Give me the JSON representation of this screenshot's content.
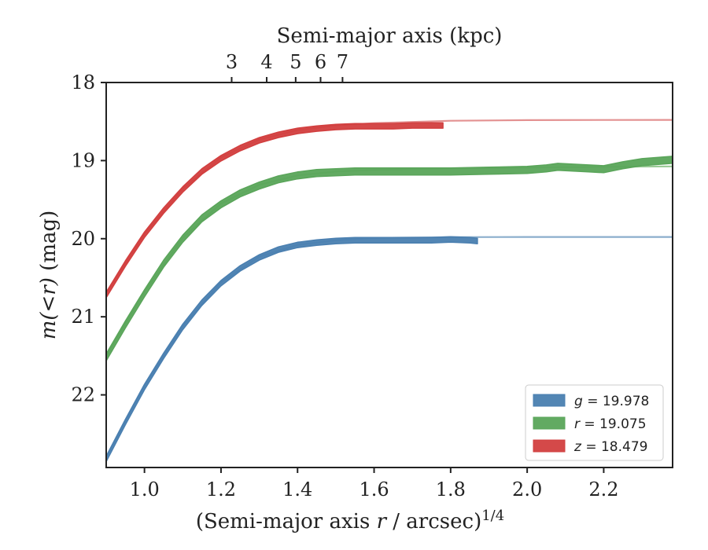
{
  "chart_data": {
    "type": "line",
    "title": "",
    "xlabel_prefix": "(Semi-major axis ",
    "xlabel_var": "r",
    "xlabel_suffix": " / arcsec)",
    "xlabel_exp": "1/4",
    "x2label": "Semi-major axis (kpc)",
    "ylabel_var": "m(<r)",
    "ylabel_suffix": " (mag)",
    "xlim": [
      0.9,
      2.38
    ],
    "ylim": [
      22.93,
      18.0
    ],
    "y_inverted": true,
    "grid": false,
    "xticks": [
      1.0,
      1.2,
      1.4,
      1.6,
      1.8,
      2.0,
      2.2
    ],
    "xtick_labels": [
      "1.0",
      "1.2",
      "1.4",
      "1.6",
      "1.8",
      "2.0",
      "2.2"
    ],
    "yticks": [
      18,
      19,
      20,
      21,
      22
    ],
    "ytick_labels": [
      "18",
      "19",
      "20",
      "21",
      "22"
    ],
    "x2ticks_kpc": [
      3,
      4,
      5,
      6,
      7
    ],
    "x2tick_labels": [
      "3",
      "4",
      "5",
      "6",
      "7"
    ],
    "x2_map": {
      "kpc_per_arcsec": 1.32
    },
    "legend_position": "lower-right",
    "series": [
      {
        "name": "g",
        "legend_label_var": "g",
        "legend_label_value": " = 19.978",
        "color": "#4a7fb0",
        "color_light": "#7ea5c6",
        "band_width_mag": 0.035,
        "data_x": [
          0.9,
          0.95,
          1.0,
          1.05,
          1.1,
          1.15,
          1.2,
          1.25,
          1.3,
          1.35,
          1.4,
          1.45,
          1.5,
          1.55,
          1.6,
          1.65,
          1.7,
          1.75,
          1.8,
          1.85,
          1.87
        ],
        "data_y": [
          22.82,
          22.35,
          21.9,
          21.5,
          21.13,
          20.82,
          20.57,
          20.38,
          20.24,
          20.14,
          20.08,
          20.05,
          20.03,
          20.02,
          20.02,
          20.02,
          20.02,
          20.02,
          20.01,
          20.02,
          20.03
        ],
        "model_x": [
          0.9,
          1.0,
          1.1,
          1.2,
          1.3,
          1.4,
          1.5,
          1.6,
          1.8,
          2.0,
          2.2,
          2.38
        ],
        "model_y": [
          22.8,
          21.88,
          21.12,
          20.56,
          20.23,
          20.08,
          20.02,
          19.99,
          19.98,
          19.978,
          19.978,
          19.978
        ]
      },
      {
        "name": "r",
        "legend_label_var": "r",
        "legend_label_value": " = 19.075",
        "color": "#5aa55a",
        "color_light": "#8ec48a",
        "band_width_mag": 0.045,
        "data_x": [
          0.9,
          0.95,
          1.0,
          1.05,
          1.1,
          1.15,
          1.2,
          1.25,
          1.3,
          1.35,
          1.4,
          1.45,
          1.5,
          1.55,
          1.6,
          1.7,
          1.8,
          1.9,
          2.0,
          2.05,
          2.08,
          2.12,
          2.16,
          2.2,
          2.25,
          2.3,
          2.38
        ],
        "data_y": [
          21.52,
          21.1,
          20.7,
          20.32,
          20.0,
          19.74,
          19.56,
          19.42,
          19.32,
          19.24,
          19.19,
          19.16,
          19.15,
          19.14,
          19.14,
          19.14,
          19.14,
          19.13,
          19.12,
          19.1,
          19.08,
          19.09,
          19.1,
          19.11,
          19.06,
          19.02,
          18.99
        ],
        "model_x": [
          0.9,
          1.0,
          1.1,
          1.2,
          1.3,
          1.4,
          1.5,
          1.6,
          1.8,
          2.0,
          2.2,
          2.38
        ],
        "model_y": [
          21.5,
          20.68,
          19.99,
          19.55,
          19.31,
          19.19,
          19.14,
          19.12,
          19.1,
          19.09,
          19.08,
          19.075
        ]
      },
      {
        "name": "z",
        "legend_label_var": "z",
        "legend_label_value": " = 18.479",
        "color": "#d23f3f",
        "color_light": "#e08585",
        "band_width_mag": 0.035,
        "data_x": [
          0.9,
          0.95,
          1.0,
          1.05,
          1.1,
          1.15,
          1.2,
          1.25,
          1.3,
          1.35,
          1.4,
          1.45,
          1.5,
          1.55,
          1.6,
          1.65,
          1.7,
          1.75,
          1.78
        ],
        "data_y": [
          20.72,
          20.32,
          19.95,
          19.64,
          19.37,
          19.14,
          18.97,
          18.84,
          18.74,
          18.67,
          18.62,
          18.59,
          18.57,
          18.56,
          18.56,
          18.56,
          18.55,
          18.55,
          18.55
        ],
        "model_x": [
          0.9,
          1.0,
          1.1,
          1.2,
          1.3,
          1.4,
          1.5,
          1.6,
          1.8,
          2.0,
          2.2,
          2.38
        ],
        "model_y": [
          20.7,
          19.94,
          19.36,
          18.96,
          18.73,
          18.61,
          18.55,
          18.52,
          18.49,
          18.482,
          18.48,
          18.479
        ]
      }
    ]
  }
}
